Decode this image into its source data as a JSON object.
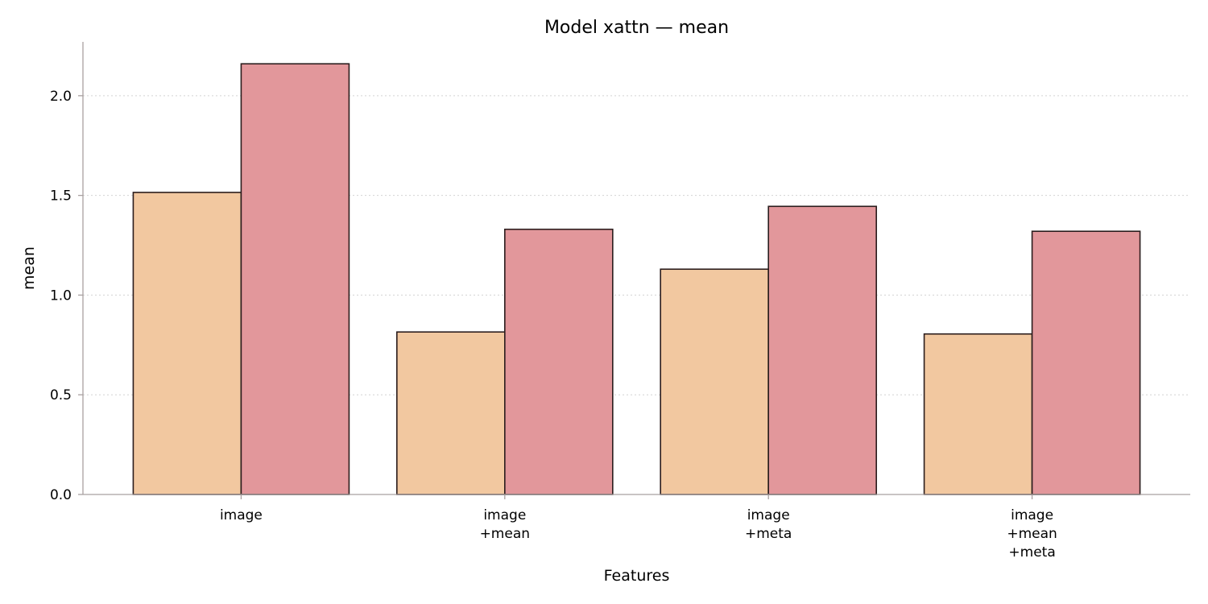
{
  "chart_data": {
    "type": "bar",
    "title": "Model xattn — mean",
    "xlabel": "Features",
    "ylabel": "mean",
    "categories": [
      [
        "image"
      ],
      [
        "image",
        "+mean"
      ],
      [
        "image",
        "+meta"
      ],
      [
        "image",
        "+mean",
        "+meta"
      ]
    ],
    "series": [
      {
        "color": "#f2c8a0",
        "values": [
          1.515,
          0.815,
          1.13,
          0.805
        ]
      },
      {
        "color": "#e2979b",
        "values": [
          2.16,
          1.33,
          1.445,
          1.32
        ]
      }
    ],
    "ylim": [
      0,
      2.27
    ],
    "yticks": [
      "0.0",
      "0.5",
      "1.0",
      "1.5",
      "2.0"
    ],
    "grid": "horizontal-dotted"
  }
}
